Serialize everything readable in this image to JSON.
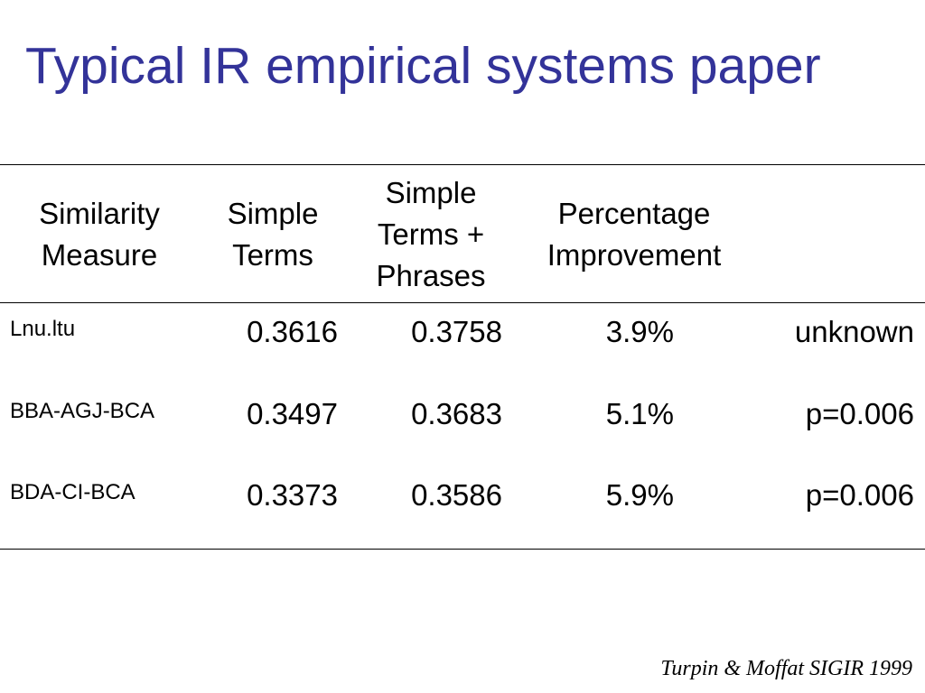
{
  "title": "Typical IR empirical systems paper",
  "table": {
    "headers": [
      [
        "Similarity",
        "Measure"
      ],
      [
        "Simple",
        "Terms"
      ],
      [
        "Simple",
        "Terms +",
        "Phrases"
      ],
      [
        "Percentage",
        "Improvement"
      ]
    ],
    "rows": [
      {
        "measure": "Lnu.ltu",
        "simple_terms": "0.3616",
        "simple_terms_phrases": "0.3758",
        "improvement": "3.9%",
        "significance": "unknown"
      },
      {
        "measure": "BBA-AGJ-BCA",
        "simple_terms": "0.3497",
        "simple_terms_phrases": "0.3683",
        "improvement": "5.1%",
        "significance": "p=0.006"
      },
      {
        "measure": "BDA-CI-BCA",
        "simple_terms": "0.3373",
        "simple_terms_phrases": "0.3586",
        "improvement": "5.9%",
        "significance": "p=0.006"
      }
    ]
  },
  "citation": "Turpin & Moffat SIGIR 1999",
  "colors": {
    "title": "#333399",
    "text": "#000000",
    "background": "#ffffff"
  }
}
